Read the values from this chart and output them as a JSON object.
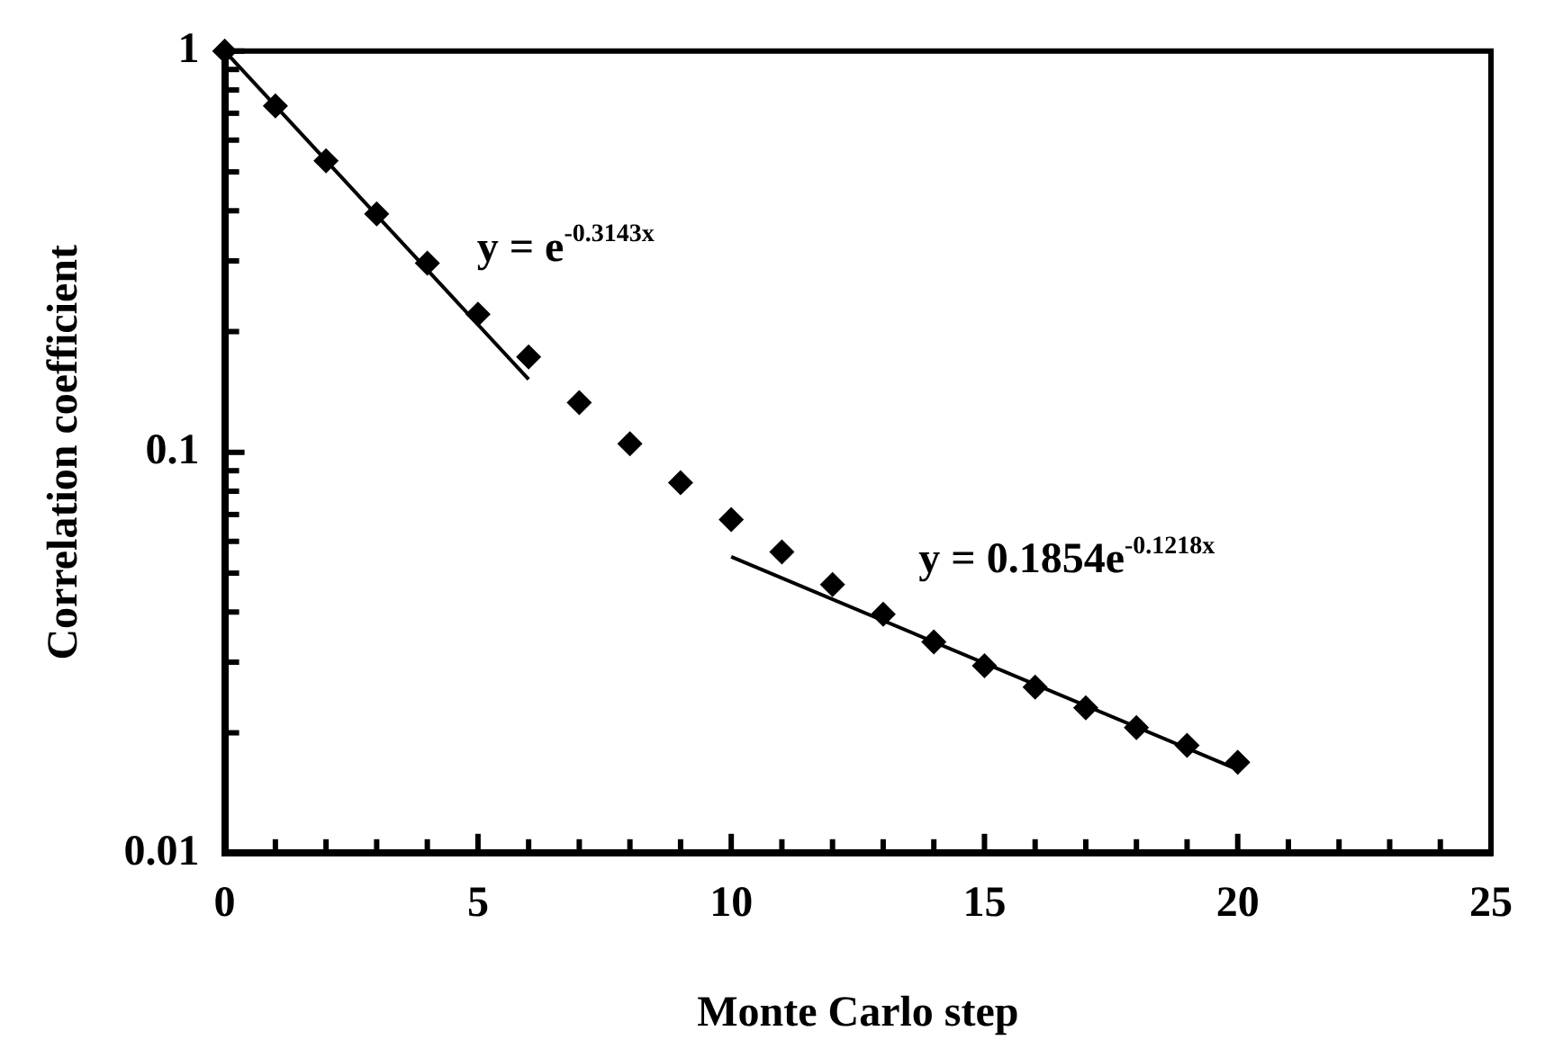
{
  "chart_data": {
    "type": "scatter",
    "xlabel": "Monte Carlo step",
    "ylabel": "Correlation coefficient",
    "log": "y",
    "marker": "diamond",
    "grid": false,
    "legend": false,
    "xlim": [
      0,
      25
    ],
    "ylim": [
      0.01,
      1
    ],
    "xticks": [
      0,
      {
        "value": 1,
        "label": null
      },
      {
        "value": 2,
        "label": null
      },
      {
        "value": 3,
        "label": null
      },
      {
        "value": 4,
        "label": null
      },
      5,
      {
        "value": 6,
        "label": null
      },
      {
        "value": 7,
        "label": null
      },
      {
        "value": 8,
        "label": null
      },
      {
        "value": 9,
        "label": null
      },
      10,
      {
        "value": 11,
        "label": null
      },
      {
        "value": 12,
        "label": null
      },
      {
        "value": 13,
        "label": null
      },
      {
        "value": 14,
        "label": null
      },
      15,
      {
        "value": 16,
        "label": null
      },
      {
        "value": 17,
        "label": null
      },
      {
        "value": 18,
        "label": null
      },
      {
        "value": 19,
        "label": null
      },
      20,
      {
        "value": 21,
        "label": null
      },
      {
        "value": 22,
        "label": null
      },
      {
        "value": 23,
        "label": null
      },
      {
        "value": 24,
        "label": null
      },
      25
    ],
    "yticks": [
      0.01,
      {
        "value": 0.02,
        "label": null
      },
      {
        "value": 0.03,
        "label": null
      },
      {
        "value": 0.04,
        "label": null
      },
      {
        "value": 0.05,
        "label": null
      },
      {
        "value": 0.06,
        "label": null
      },
      {
        "value": 0.07,
        "label": null
      },
      {
        "value": 0.08,
        "label": null
      },
      {
        "value": 0.09,
        "label": null
      },
      0.1,
      {
        "value": 0.2,
        "label": null
      },
      {
        "value": 0.3,
        "label": null
      },
      {
        "value": 0.4,
        "label": null
      },
      {
        "value": 0.5,
        "label": null
      },
      {
        "value": 0.6,
        "label": null
      },
      {
        "value": 0.7,
        "label": null
      },
      {
        "value": 0.8,
        "label": null
      },
      {
        "value": 0.9,
        "label": null
      },
      1
    ],
    "series": [
      {
        "color": "#000000",
        "x": [
          0,
          1,
          2,
          3,
          4,
          5,
          6,
          7,
          8,
          9,
          10,
          11,
          12,
          13,
          14,
          15,
          16,
          17,
          18,
          19,
          20
        ],
        "values": [
          1,
          0.73,
          0.533,
          0.393,
          0.296,
          0.221,
          0.173,
          0.133,
          0.105,
          0.084,
          0.068,
          0.0565,
          0.0468,
          0.0395,
          0.0337,
          0.0294,
          0.026,
          0.0231,
          0.0206,
          0.0186,
          0.0169
        ]
      },
      {
        "type": "line",
        "marker": "none",
        "color": "#000000",
        "x": [
          0,
          6
        ],
        "values": [
          1,
          0.152
        ]
      },
      {
        "type": "line",
        "marker": "none",
        "color": "#000000",
        "x": [
          10,
          20
        ],
        "values": [
          0.0549,
          0.0162
        ]
      }
    ],
    "annotations": [
      "y = e$^{-0.3143x}$",
      "y = 0.1854e$^{-0.1218x}$"
    ]
  }
}
